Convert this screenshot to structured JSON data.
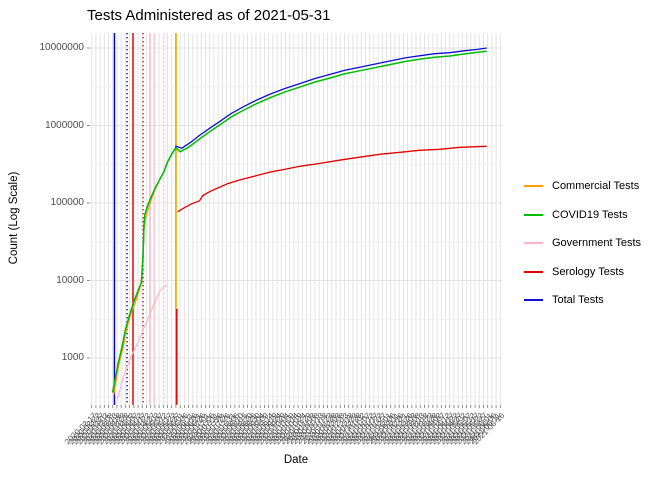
{
  "title": "Tests Administered as of 2021-05-31",
  "axes": {
    "x_label": "Date",
    "y_label": "Count (Log Scale)",
    "y_tick_labels": [
      "10000000",
      "1000000",
      "100000",
      "10000",
      "1000"
    ],
    "x_tick_labels_note": "dense overlapping rotated date labels (YYYY-MM-DD), illegible in source image"
  },
  "legend": {
    "entries": [
      {
        "label": "Commercial Tests",
        "color": "#ff9d00"
      },
      {
        "label": "COVID19 Tests",
        "color": "#00bf00"
      },
      {
        "label": "Government Tests",
        "color": "#ffb3c6"
      },
      {
        "label": "Serology Tests",
        "color": "#e10000"
      },
      {
        "label": "Total Tests",
        "color": "#0f0fd6"
      }
    ]
  },
  "chart_data": {
    "type": "line",
    "title": "Tests Administered as of 2021-05-31",
    "xlabel": "Date",
    "ylabel": "Count (Log Scale)",
    "x_axis": {
      "unit": "days since 2020-03-13",
      "start_date": "2020-03-13",
      "end_date": "2021-05-31",
      "domain_days": [
        -27,
        462
      ],
      "tick_first_day": -25,
      "tick_last_day": 460,
      "tick_step_days": 5,
      "tick_label_format": "YYYY-MM-DD"
    },
    "y_axis": {
      "scale": "log10",
      "domain_log10": [
        2.394,
        7.194
      ],
      "major_ticks": [
        1000,
        10000,
        100000,
        1000000,
        10000000
      ],
      "minor_ticks_log10": [
        2.5,
        3.5,
        4.5,
        5.5,
        6.5
      ]
    },
    "grid": true,
    "legend_position": "right",
    "series": [
      {
        "name": "Total Tests",
        "color": "#0f0fd6",
        "width": 1.3,
        "points": [
          [
            0,
            360
          ],
          [
            6,
            810
          ],
          [
            11,
            1390
          ],
          [
            15,
            2300
          ],
          [
            20,
            3600
          ],
          [
            25,
            5300
          ],
          [
            30,
            7350
          ],
          [
            34,
            9400
          ],
          [
            36,
            21500
          ],
          [
            37,
            48000
          ],
          [
            38,
            71000
          ],
          [
            42,
            96000
          ],
          [
            46,
            122000
          ],
          [
            51,
            160000
          ],
          [
            56,
            203000
          ],
          [
            61,
            257000
          ],
          [
            65,
            337000
          ],
          [
            70,
            428000
          ],
          [
            74,
            500000
          ],
          [
            75,
            540000
          ],
          [
            82,
            510000
          ],
          [
            87,
            555000
          ],
          [
            94,
            625000
          ],
          [
            103,
            745000
          ],
          [
            115,
            920000
          ],
          [
            127,
            1130000
          ],
          [
            141,
            1440000
          ],
          [
            156,
            1770000
          ],
          [
            170,
            2110000
          ],
          [
            186,
            2520000
          ],
          [
            204,
            3000000
          ],
          [
            222,
            3480000
          ],
          [
            240,
            4050000
          ],
          [
            258,
            4570000
          ],
          [
            275,
            5150000
          ],
          [
            293,
            5650000
          ],
          [
            311,
            6200000
          ],
          [
            329,
            6800000
          ],
          [
            347,
            7450000
          ],
          [
            364,
            7950000
          ],
          [
            382,
            8450000
          ],
          [
            400,
            8700000
          ],
          [
            418,
            9250000
          ],
          [
            433,
            9600000
          ],
          [
            444,
            10000000
          ]
        ]
      },
      {
        "name": "Commercial Tests",
        "color": "#ff9d00",
        "width": 1.2,
        "points": [
          [
            1,
            330
          ],
          [
            5,
            600
          ],
          [
            8,
            900
          ],
          [
            12,
            1300
          ],
          [
            15,
            2000
          ],
          [
            19,
            3000
          ],
          [
            23,
            4200
          ],
          [
            26,
            4900
          ],
          [
            30,
            6700
          ],
          [
            33,
            8500
          ],
          [
            36,
            18500
          ],
          [
            37,
            44000
          ],
          [
            39,
            64000
          ],
          [
            43,
            89000
          ],
          [
            46,
            113000
          ],
          [
            50,
            148000
          ],
          [
            53,
            172000
          ]
        ]
      },
      {
        "name": "COVID19 Tests",
        "color": "#00bf00",
        "width": 1.5,
        "points": [
          [
            0,
            360
          ],
          [
            6,
            810
          ],
          [
            11,
            1390
          ],
          [
            15,
            2300
          ],
          [
            20,
            3600
          ],
          [
            25,
            5300
          ],
          [
            30,
            7350
          ],
          [
            34,
            9400
          ],
          [
            36,
            21500
          ],
          [
            37,
            48000
          ],
          [
            38,
            71000
          ],
          [
            42,
            96000
          ],
          [
            46,
            122000
          ],
          [
            51,
            160000
          ],
          [
            56,
            203000
          ],
          [
            61,
            257000
          ],
          [
            65,
            337000
          ],
          [
            70,
            428000
          ],
          [
            74,
            500000
          ],
          [
            75,
            515000
          ],
          [
            80,
            458000
          ],
          [
            84,
            487000
          ],
          [
            87,
            500000
          ],
          [
            94,
            565000
          ],
          [
            103,
            670000
          ],
          [
            115,
            830000
          ],
          [
            127,
            1020000
          ],
          [
            141,
            1300000
          ],
          [
            156,
            1590000
          ],
          [
            170,
            1900000
          ],
          [
            186,
            2270000
          ],
          [
            204,
            2700000
          ],
          [
            222,
            3130000
          ],
          [
            240,
            3650000
          ],
          [
            258,
            4110000
          ],
          [
            275,
            4640000
          ],
          [
            293,
            5090000
          ],
          [
            311,
            5580000
          ],
          [
            329,
            6120000
          ],
          [
            347,
            6710000
          ],
          [
            364,
            7160000
          ],
          [
            382,
            7610000
          ],
          [
            400,
            7900000
          ],
          [
            418,
            8400000
          ],
          [
            433,
            8800000
          ],
          [
            444,
            9100000
          ]
        ]
      },
      {
        "name": "Government Tests",
        "color": "#ffb3c6",
        "width": 1.2,
        "points": [
          [
            5,
            290
          ],
          [
            7,
            330
          ],
          [
            12,
            550
          ],
          [
            17,
            760
          ],
          [
            21,
            1000
          ],
          [
            26,
            1300
          ],
          [
            31,
            1700
          ],
          [
            36,
            2300
          ],
          [
            40,
            2900
          ],
          [
            45,
            3900
          ],
          [
            50,
            5250
          ],
          [
            53,
            6300
          ],
          [
            56,
            7250
          ],
          [
            59,
            7950
          ],
          [
            64,
            8700
          ]
        ]
      },
      {
        "name": "Serology Tests",
        "color": "#e10000",
        "width": 1.3,
        "points": [
          [
            77,
            77000
          ],
          [
            85,
            87000
          ],
          [
            94,
            98000
          ],
          [
            103,
            107000
          ],
          [
            107,
            125000
          ],
          [
            115,
            140000
          ],
          [
            125,
            157000
          ],
          [
            136,
            177000
          ],
          [
            151,
            199000
          ],
          [
            169,
            223000
          ],
          [
            186,
            250000
          ],
          [
            204,
            272000
          ],
          [
            222,
            298000
          ],
          [
            246,
            325000
          ],
          [
            269,
            357000
          ],
          [
            293,
            390000
          ],
          [
            317,
            426000
          ],
          [
            341,
            452000
          ],
          [
            364,
            479000
          ],
          [
            388,
            494000
          ],
          [
            412,
            524000
          ],
          [
            444,
            540000
          ]
        ]
      },
      {
        "name": "serology-initial-segment",
        "color": "#e10000",
        "width": 1.5,
        "in_legend": false,
        "points": [
          [
            76,
            250
          ],
          [
            76,
            4300
          ]
        ]
      }
    ],
    "vlines": [
      {
        "day": 2,
        "color": "#0000c8",
        "style": "solid",
        "width": 1.4
      },
      {
        "day": 17,
        "color": "#00008b",
        "style": "dotted",
        "width": 1.3
      },
      {
        "day": 24,
        "color": "#e10000",
        "style": "solid",
        "width": 1.4
      },
      {
        "day": 36,
        "color": "#b01010",
        "style": "dotted",
        "width": 1.3
      },
      {
        "day": 44,
        "color": "#ffb3c6",
        "style": "solid",
        "width": 1.2
      },
      {
        "day": 49,
        "color": "#ffc4d2",
        "style": "solid",
        "width": 1.2
      },
      {
        "day": 62,
        "color": "#ffc4d2",
        "style": "dotted",
        "width": 1.3
      },
      {
        "day": 75,
        "color": "#e6b400",
        "style": "solid",
        "width": 1.8
      }
    ]
  }
}
